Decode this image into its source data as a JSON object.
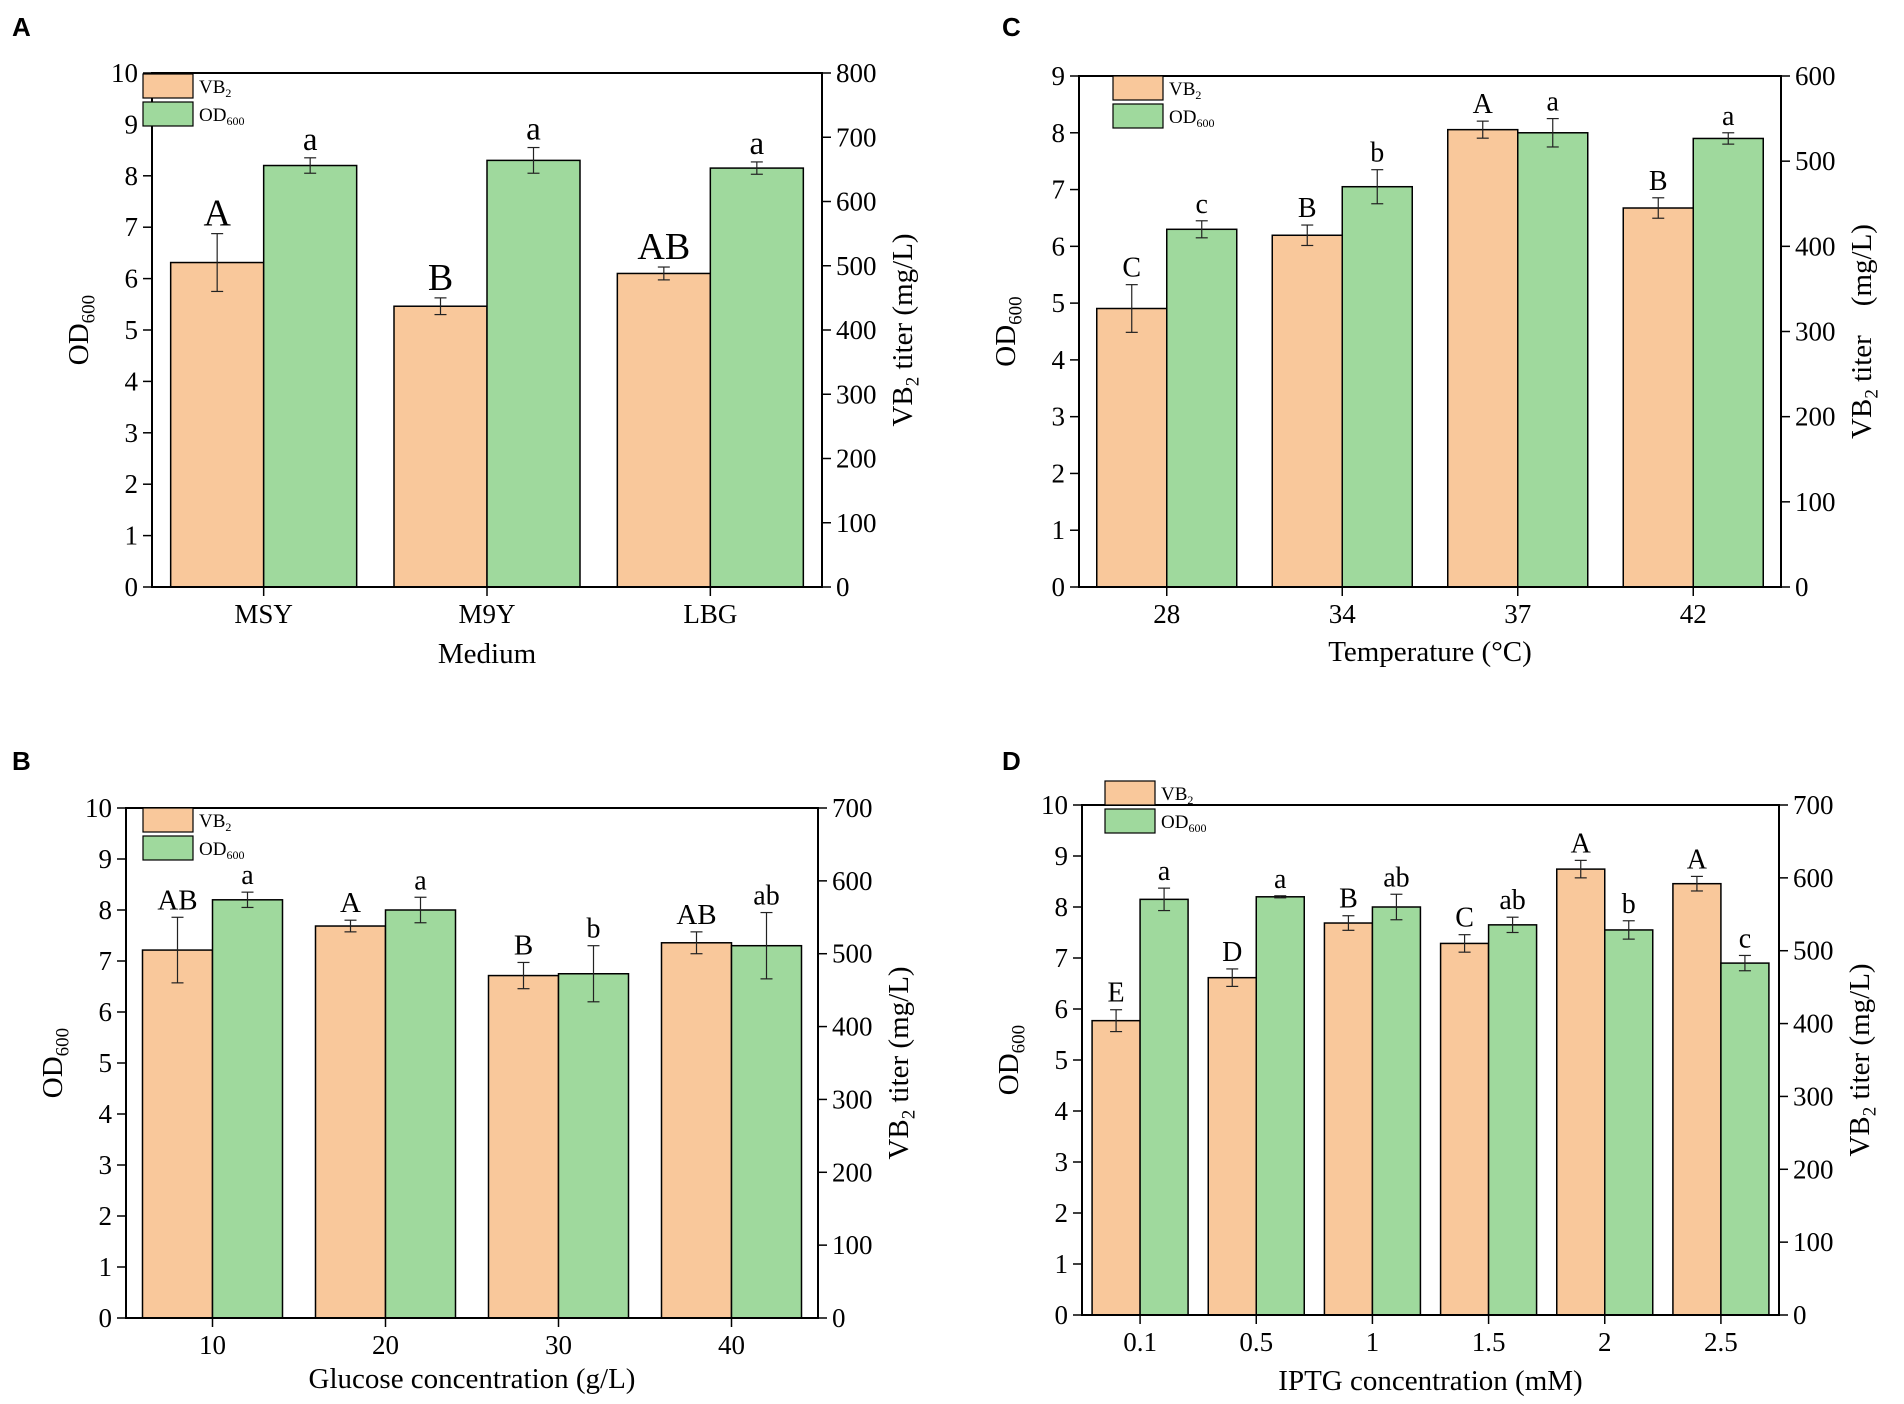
{
  "colors": {
    "vb2": "#f9c89b",
    "od600": "#9fd99d",
    "stroke": "#000000"
  },
  "chart_data": [
    {
      "panel": "A",
      "type": "bar",
      "xlabel": "Medium",
      "ylabel_left": {
        "base": "OD",
        "sub": "600"
      },
      "ylabel_right": {
        "base": "VB",
        "sub": "2",
        "rest": " titer (mg/L)"
      },
      "categories": [
        "MSY",
        "M9Y",
        "LBG"
      ],
      "ylim_left": [
        0,
        10
      ],
      "yticks_left": [
        "0",
        "1",
        "2",
        "3",
        "4",
        "5",
        "6",
        "7",
        "8",
        "9",
        "10"
      ],
      "ylim_right": [
        0,
        800
      ],
      "yticks_right": [
        "0",
        "100",
        "200",
        "300",
        "400",
        "500",
        "600",
        "700",
        "800"
      ],
      "legend": [
        {
          "base": "VB",
          "sub": "2"
        },
        {
          "base": "OD",
          "sub": "600"
        }
      ],
      "series": [
        {
          "name": "VB2",
          "axis": "right",
          "values": [
            505,
            437,
            488
          ],
          "errors": [
            45,
            13,
            10
          ],
          "labels": [
            "A",
            "B",
            "AB"
          ]
        },
        {
          "name": "OD600",
          "axis": "left",
          "values": [
            8.2,
            8.3,
            8.15
          ],
          "errors": [
            0.15,
            0.25,
            0.12
          ],
          "labels": [
            "a",
            "a",
            "a"
          ]
        }
      ]
    },
    {
      "panel": "B",
      "type": "bar",
      "xlabel": "Glucose concentration (g/L)",
      "ylabel_left": {
        "base": "OD",
        "sub": "600"
      },
      "ylabel_right": {
        "base": "VB",
        "sub": "2",
        "rest": " titer (mg/L)"
      },
      "categories": [
        "10",
        "20",
        "30",
        "40"
      ],
      "ylim_left": [
        0,
        10
      ],
      "yticks_left": [
        "0",
        "1",
        "2",
        "3",
        "4",
        "5",
        "6",
        "7",
        "8",
        "9",
        "10"
      ],
      "ylim_right": [
        0,
        700
      ],
      "yticks_right": [
        "0",
        "100",
        "200",
        "300",
        "400",
        "500",
        "600",
        "700"
      ],
      "legend": [
        {
          "base": "VB",
          "sub": "2"
        },
        {
          "base": "OD",
          "sub": "600"
        }
      ],
      "series": [
        {
          "name": "VB2",
          "axis": "right",
          "values": [
            505,
            538,
            470,
            515
          ],
          "errors": [
            45,
            8,
            18,
            15
          ],
          "labels": [
            "AB",
            "A",
            "B",
            "AB"
          ]
        },
        {
          "name": "OD600",
          "axis": "left",
          "values": [
            8.2,
            8.0,
            6.75,
            7.3
          ],
          "errors": [
            0.15,
            0.25,
            0.55,
            0.65
          ],
          "labels": [
            "a",
            "a",
            "b",
            "ab"
          ]
        }
      ]
    },
    {
      "panel": "C",
      "type": "bar",
      "xlabel": "Temperature (°C)",
      "ylabel_left": {
        "base": "OD",
        "sub": "600"
      },
      "ylabel_right": {
        "base": "VB",
        "sub": "2",
        "rest": " titer　(mg/L)"
      },
      "categories": [
        "28",
        "34",
        "37",
        "42"
      ],
      "ylim_left": [
        0,
        9
      ],
      "yticks_left": [
        "0",
        "1",
        "2",
        "3",
        "4",
        "5",
        "6",
        "7",
        "8",
        "9"
      ],
      "ylim_right": [
        0,
        600
      ],
      "yticks_right": [
        "0",
        "100",
        "200",
        "300",
        "400",
        "500",
        "600"
      ],
      "legend": [
        {
          "base": "VB",
          "sub": "2"
        },
        {
          "base": "OD",
          "sub": "600"
        }
      ],
      "series": [
        {
          "name": "VB2",
          "axis": "right",
          "values": [
            327,
            413,
            537,
            445
          ],
          "errors": [
            28,
            12,
            10,
            12
          ],
          "labels": [
            "C",
            "B",
            "A",
            "B"
          ]
        },
        {
          "name": "OD600",
          "axis": "left",
          "values": [
            6.3,
            7.05,
            8.0,
            7.9
          ],
          "errors": [
            0.15,
            0.3,
            0.25,
            0.1
          ],
          "labels": [
            "c",
            "b",
            "a",
            "a"
          ]
        }
      ]
    },
    {
      "panel": "D",
      "type": "bar",
      "xlabel": "IPTG concentration (mM)",
      "ylabel_left": {
        "base": "OD",
        "sub": "600"
      },
      "ylabel_right": {
        "base": "VB",
        "sub": "2",
        "rest": " titer (mg/L)"
      },
      "categories": [
        "0.1",
        "0.5",
        "1",
        "1.5",
        "2",
        "2.5"
      ],
      "ylim_left": [
        0,
        10
      ],
      "yticks_left": [
        "0",
        "1",
        "2",
        "3",
        "4",
        "5",
        "6",
        "7",
        "8",
        "9",
        "10"
      ],
      "ylim_right": [
        0,
        700
      ],
      "yticks_right": [
        "0",
        "100",
        "200",
        "300",
        "400",
        "500",
        "600",
        "700"
      ],
      "legend": [
        {
          "base": "VB",
          "sub": "2"
        },
        {
          "base": "OD",
          "sub": "600"
        }
      ],
      "series": [
        {
          "name": "VB2",
          "axis": "right",
          "values": [
            404,
            463,
            538,
            510,
            612,
            592
          ],
          "errors": [
            15,
            12,
            10,
            12,
            12,
            10
          ],
          "labels": [
            "E",
            "D",
            "B",
            "C",
            "A",
            "A"
          ]
        },
        {
          "name": "OD600",
          "axis": "left",
          "values": [
            8.15,
            8.2,
            8.0,
            7.65,
            7.55,
            6.9
          ],
          "errors": [
            0.22,
            0.02,
            0.25,
            0.15,
            0.18,
            0.15
          ],
          "labels": [
            "a",
            "a",
            "ab",
            "ab",
            "b",
            "c"
          ]
        }
      ]
    }
  ]
}
